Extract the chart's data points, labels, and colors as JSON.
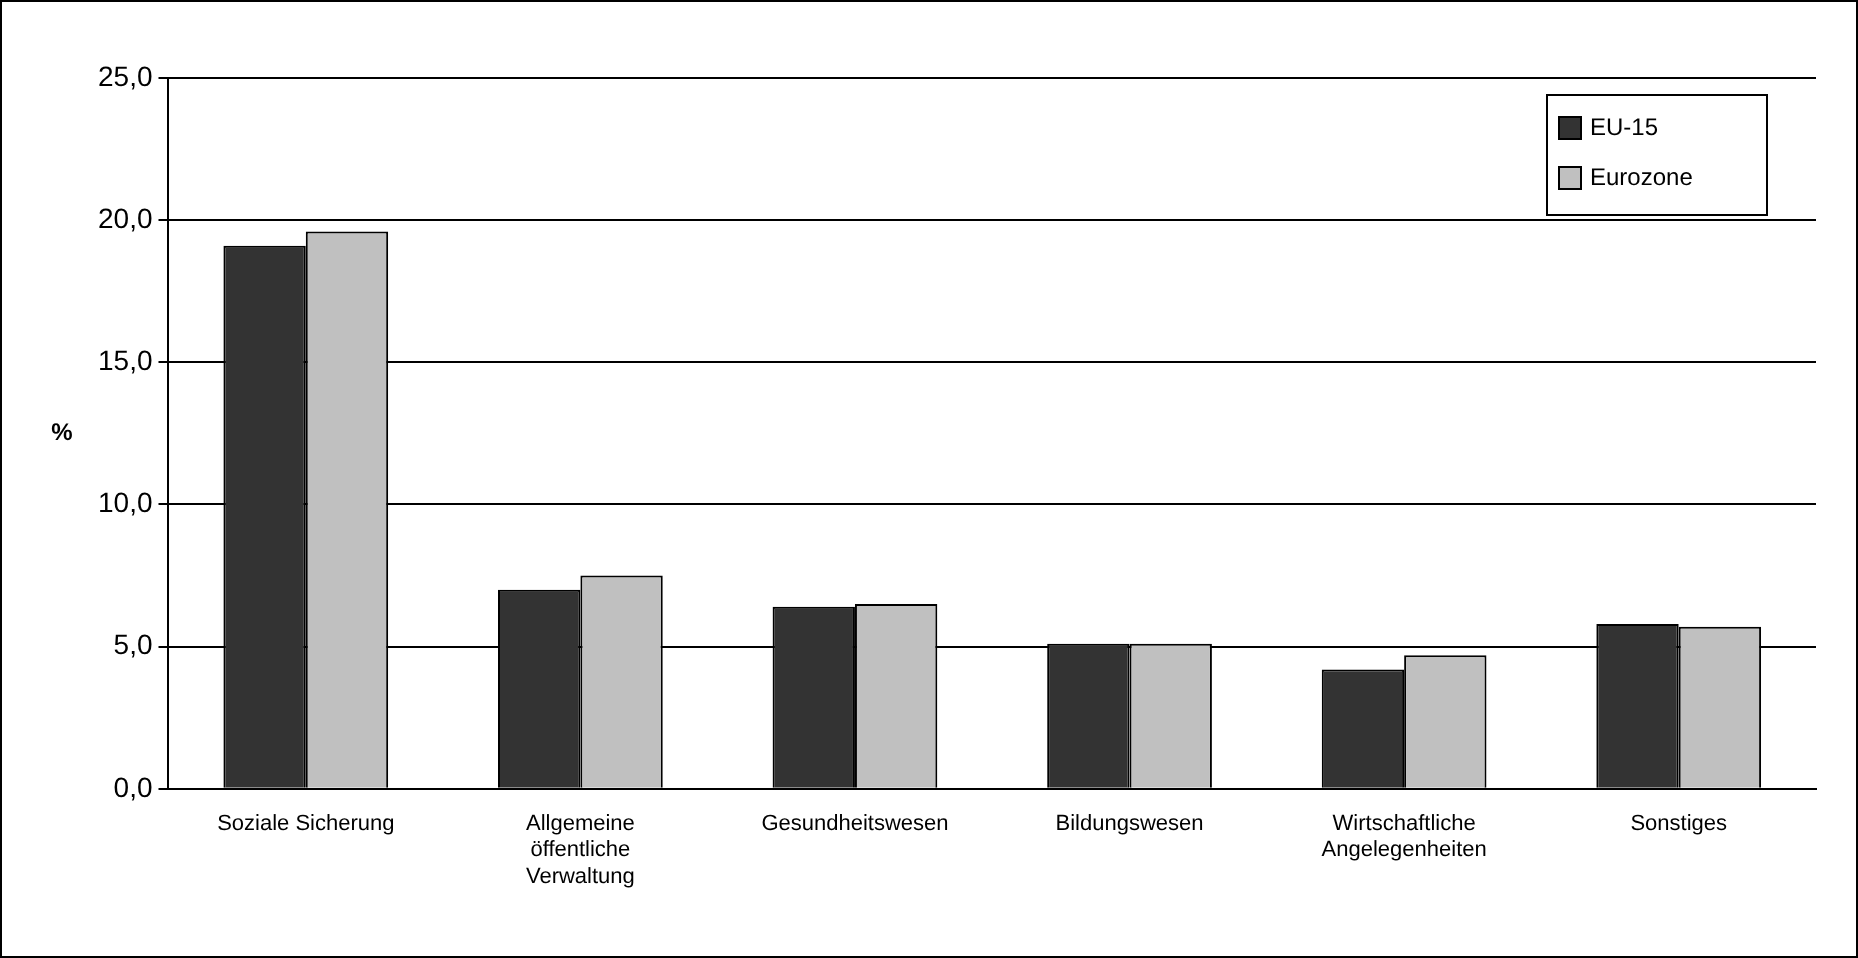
{
  "chart_data": {
    "type": "bar",
    "ylabel": "%",
    "categories": [
      "Soziale Sicherung",
      "Allgemeine öffentliche Verwaltung",
      "Gesundheitswesen",
      "Bildungswesen",
      "Wirtschaftliche Angelegenheiten",
      "Sonstiges"
    ],
    "series": [
      {
        "name": "EU-15",
        "color": "#333333",
        "values": [
          19.1,
          7.0,
          6.4,
          5.1,
          4.2,
          5.8
        ]
      },
      {
        "name": "Eurozone",
        "color": "#c0c0c0",
        "values": [
          19.6,
          7.5,
          6.5,
          5.1,
          4.7,
          5.7
        ]
      }
    ],
    "ylim": [
      0,
      25
    ],
    "yticks": [
      {
        "value": 0,
        "label": "0,0"
      },
      {
        "value": 5,
        "label": "5,0"
      },
      {
        "value": 10,
        "label": "10,0"
      },
      {
        "value": 15,
        "label": "15,0"
      },
      {
        "value": 20,
        "label": "20,0"
      },
      {
        "value": 25,
        "label": "25,0"
      }
    ],
    "grid": "y",
    "legend": "top right"
  }
}
